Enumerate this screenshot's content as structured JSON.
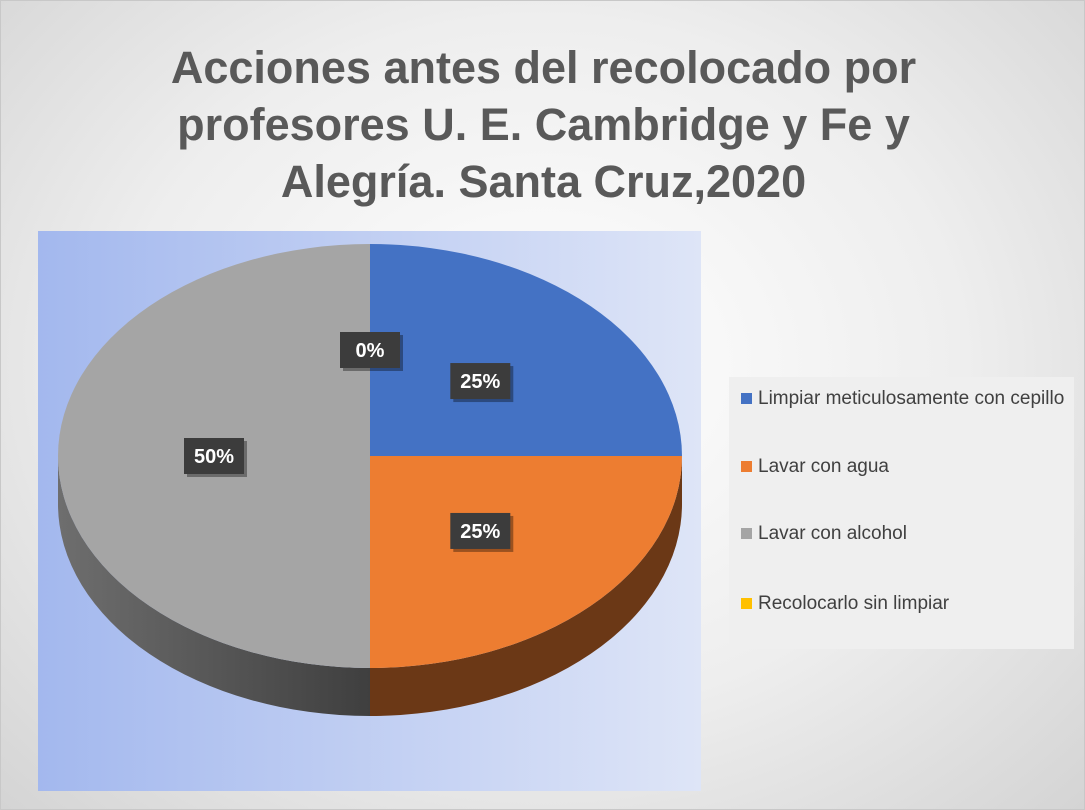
{
  "chart_data": {
    "type": "pie",
    "title": "Acciones antes del recolocado por profesores U. E. Cambridge y Fe y Alegría. Santa Cruz,2020",
    "categories": [
      "Limpiar meticulosamente con cepillo",
      "Lavar con agua",
      "Lavar con alcohol",
      "Recolocarlo sin limpiar"
    ],
    "values": [
      25,
      25,
      50,
      0
    ],
    "value_labels": [
      "25%",
      "25%",
      "50%",
      "0%"
    ],
    "colors": [
      "#4472c4",
      "#ed7d31",
      "#a5a5a5",
      "#ffc000"
    ],
    "legend": "right"
  }
}
